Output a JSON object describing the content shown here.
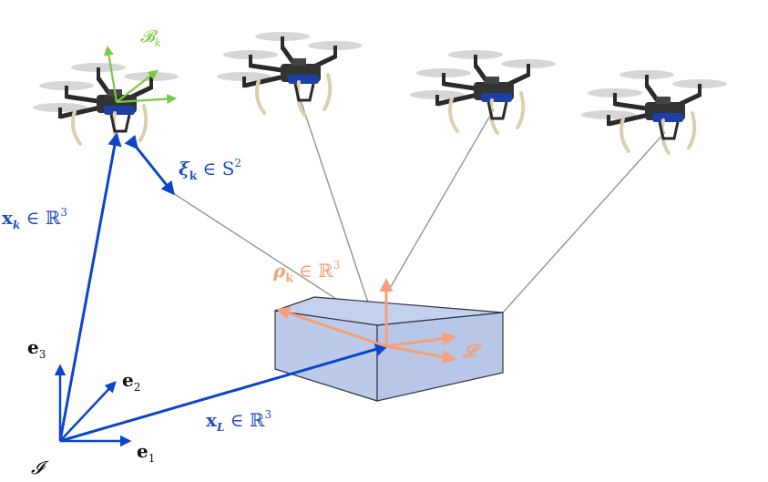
{
  "colors": {
    "vector_blue": "#0b45c9",
    "label_blue": "#1f4fbf",
    "load_orange": "#f4a07a",
    "body_frame_green": "#7ac943",
    "cable_gray": "#999999",
    "box_face": "#bccaea",
    "box_edge": "#333344",
    "drone_dark": "#2a2a2a",
    "drone_blue": "#1c3fa8",
    "prop_gray": "#c9c9c9",
    "leg_cream": "#d8d0b0"
  },
  "labels": {
    "body_frame": "𝓑",
    "body_frame_sub": "k",
    "cable_direction_main": "ξ",
    "cable_direction_sub": "k",
    "cable_direction_rest": " ∈ S",
    "cable_direction_sup": "2",
    "drone_position_main": "x",
    "drone_position_sub": "k",
    "drone_position_rest": " ∈ ℝ",
    "drone_position_sup": "3",
    "attach_point_main": "ρ",
    "attach_point_sub": "k",
    "attach_point_rest": " ∈ ℝ",
    "attach_point_sup": "3",
    "load_frame": "𝓛",
    "load_position_main": "x",
    "load_position_sub": "L",
    "load_position_rest": " ∈ ℝ",
    "load_position_sup": "3",
    "axis_e1_main": "e",
    "axis_e1_sub": "1",
    "axis_e2_main": "e",
    "axis_e2_sub": "2",
    "axis_e3_main": "e",
    "axis_e3_sub": "3",
    "inertial_frame": "𝓘"
  },
  "icons": [
    "quadrotor-icon",
    "quadrotor-icon",
    "quadrotor-icon",
    "quadrotor-icon"
  ]
}
